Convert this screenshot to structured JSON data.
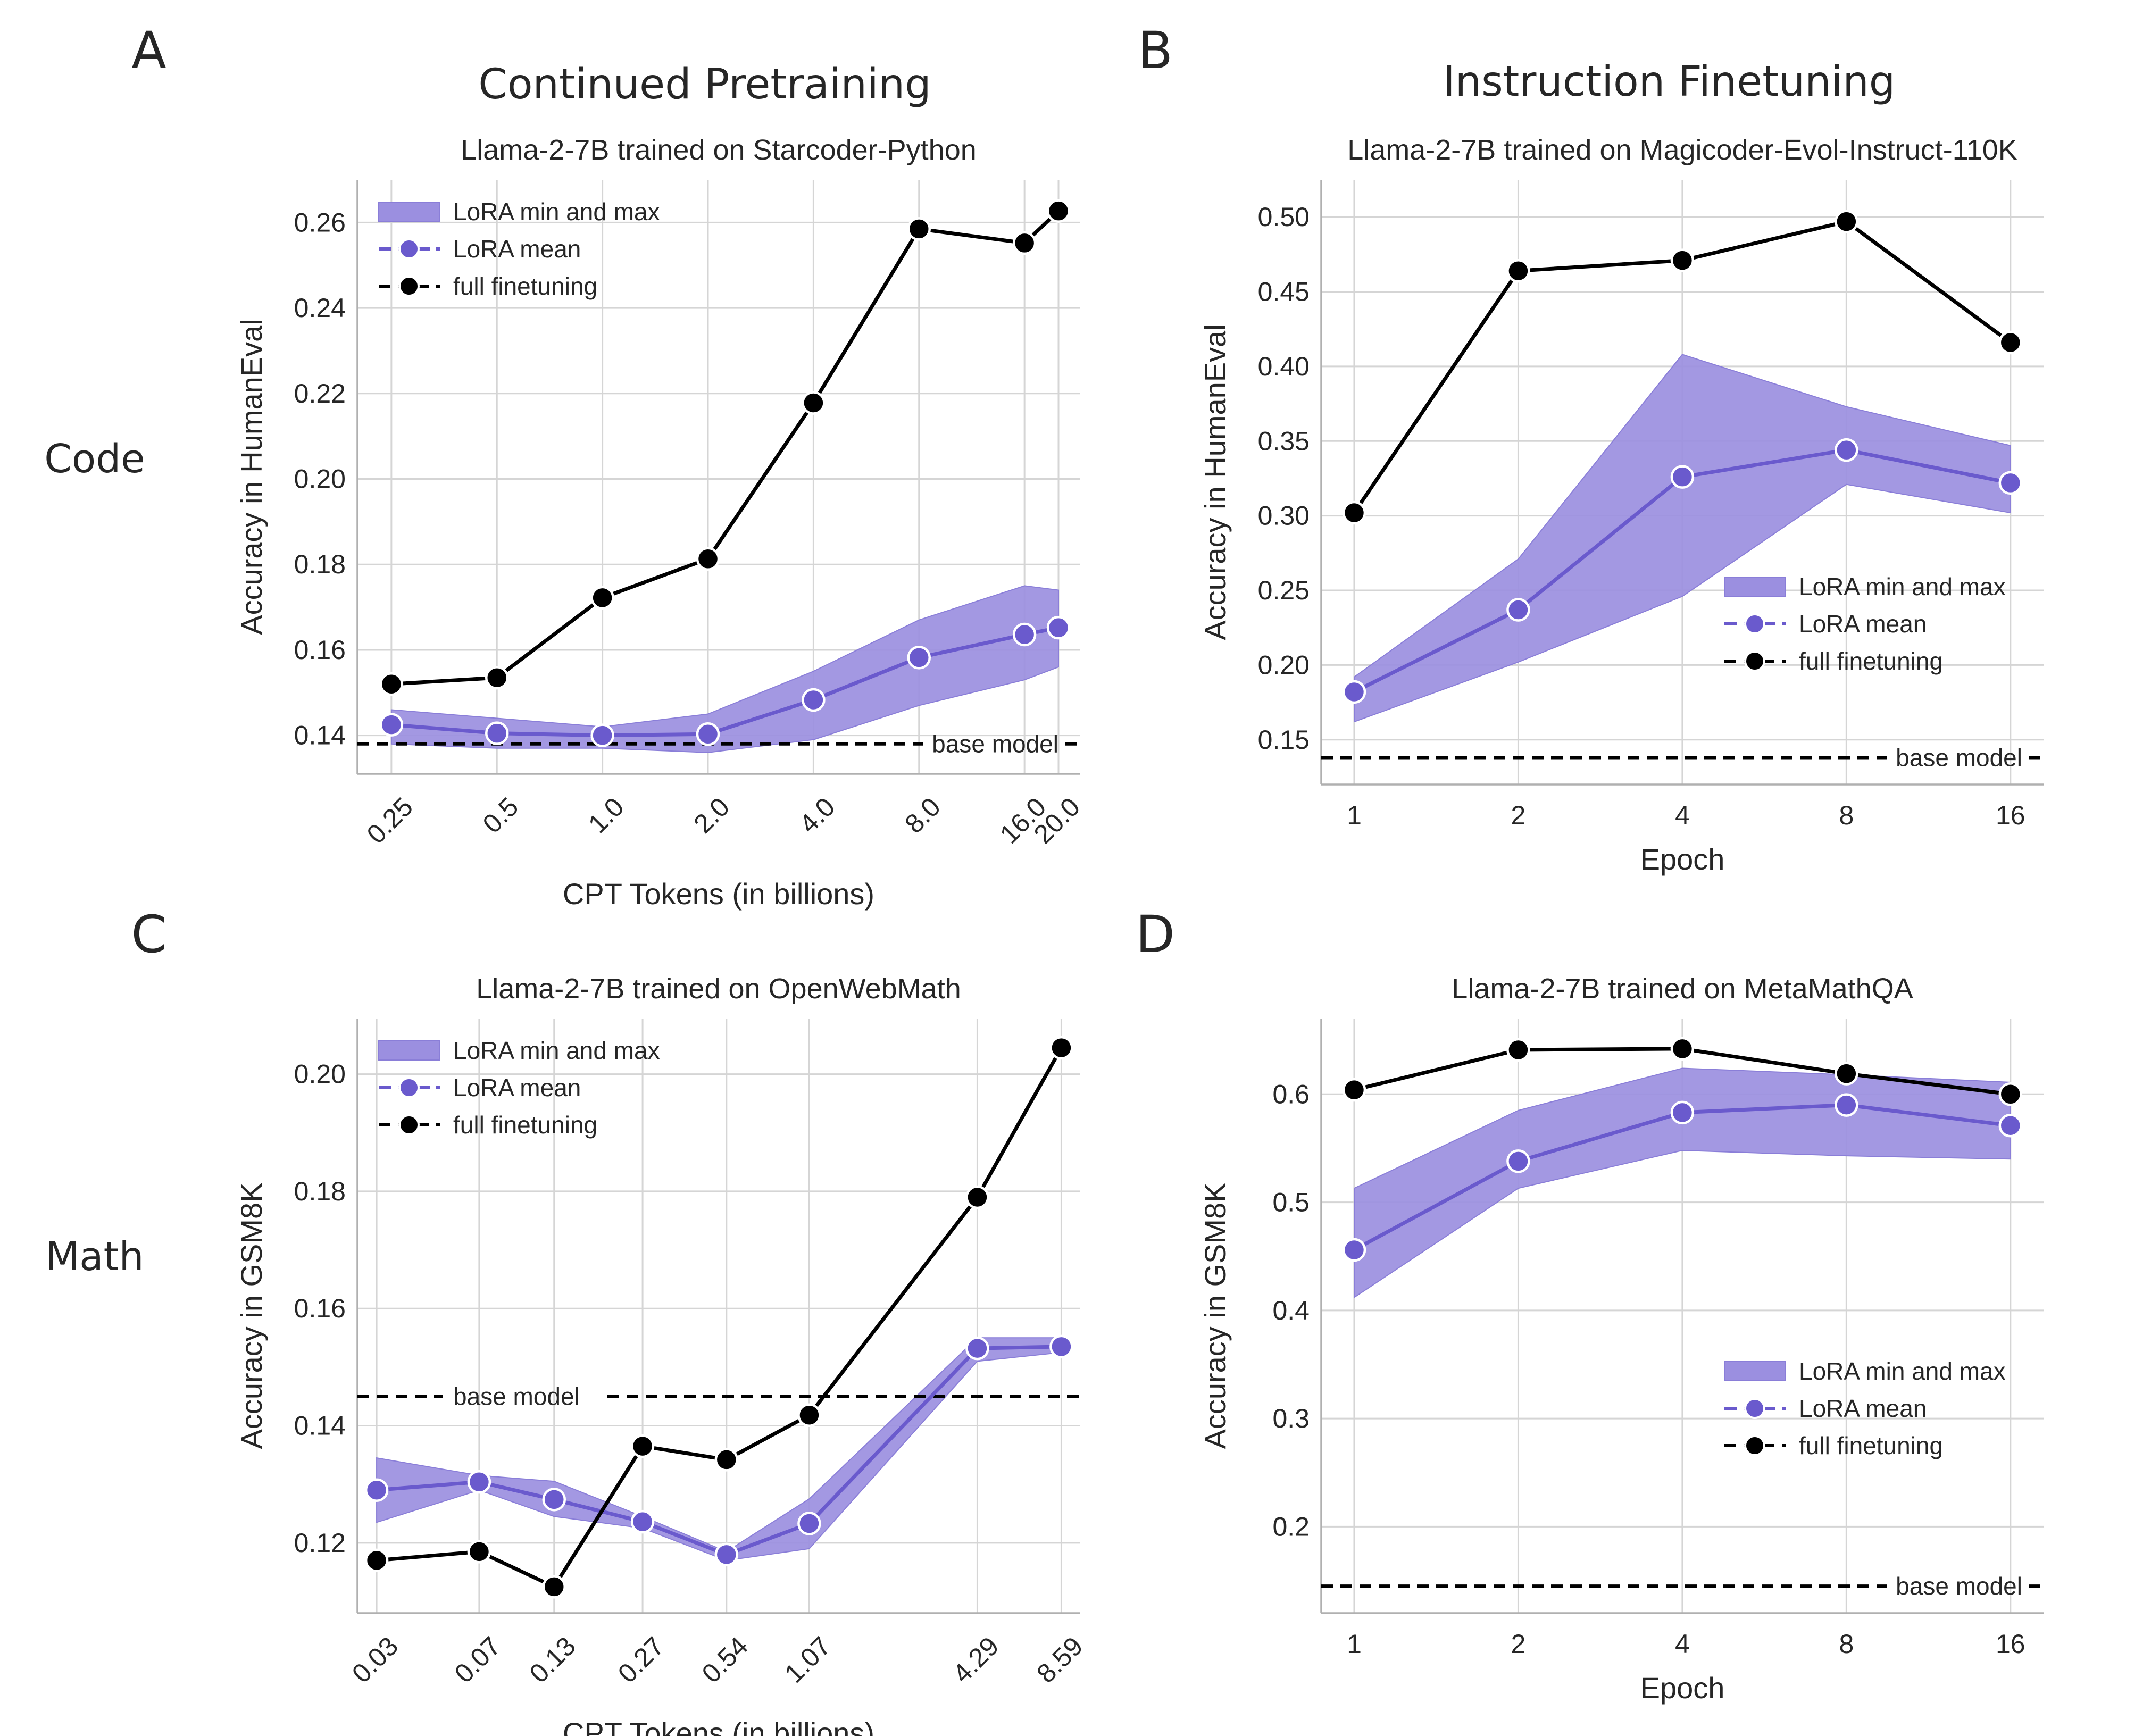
{
  "figure": {
    "column_titles": [
      "Continued Pretraining",
      "Instruction Finetuning"
    ],
    "row_labels": [
      "Code",
      "Math"
    ],
    "panel_letters": [
      "A",
      "B",
      "C",
      "D"
    ]
  },
  "colors": {
    "lora": "#6a5acd",
    "band": "#9b8fe0",
    "full": "#000000",
    "grid": "#d5d5d5",
    "axis": "#b0b0b0"
  },
  "chart_data": [
    {
      "id": "A",
      "type": "line",
      "title": "Llama-2-7B trained on Starcoder-Python",
      "xlabel": "CPT Tokens (in billions)",
      "ylabel": "Accuracy in HumanEval",
      "x_scale": "log2",
      "x": [
        0.25,
        0.5,
        1.0,
        2.0,
        4.0,
        8.0,
        16.0,
        20.0
      ],
      "xtick_labels": [
        "0.25",
        "0.5",
        "1.0",
        "2.0",
        "4.0",
        "8.0",
        "16.0",
        "20.0"
      ],
      "xtick_rotation": 45,
      "xlim": [
        0.2,
        23.0
      ],
      "ylim": [
        0.131,
        0.27
      ],
      "yticks": [
        0.14,
        0.16,
        0.18,
        0.2,
        0.22,
        0.24,
        0.26
      ],
      "ytick_labels": [
        "0.14",
        "0.16",
        "0.18",
        "0.20",
        "0.22",
        "0.24",
        "0.26"
      ],
      "series": [
        {
          "name": "LoRA min and max",
          "kind": "band",
          "lower": [
            0.138,
            0.137,
            0.137,
            0.136,
            0.139,
            0.147,
            0.153,
            0.156
          ],
          "upper": [
            0.146,
            0.144,
            0.142,
            0.145,
            0.155,
            0.167,
            0.175,
            0.174
          ]
        },
        {
          "name": "LoRA mean",
          "kind": "line",
          "values": [
            0.1425,
            0.1405,
            0.14,
            0.1403,
            0.1483,
            0.1582,
            0.1636,
            0.1652
          ]
        },
        {
          "name": "full finetuning",
          "kind": "line",
          "values": [
            0.152,
            0.1535,
            0.1722,
            0.1813,
            0.2178,
            0.2585,
            0.2552,
            0.2627
          ]
        }
      ],
      "baseline": {
        "label": "base model",
        "value": 0.138,
        "label_position": "right"
      },
      "legend": {
        "position": "top-left",
        "entries": [
          "LoRA min and max",
          "LoRA mean",
          "full finetuning"
        ]
      }
    },
    {
      "id": "B",
      "type": "line",
      "title": "Llama-2-7B trained on Magicoder-Evol-Instruct-110K",
      "xlabel": "Epoch",
      "ylabel": "Accuracy in HumanEval",
      "x_scale": "log2",
      "x": [
        1,
        2,
        4,
        8,
        16
      ],
      "xtick_labels": [
        "1",
        "2",
        "4",
        "8",
        "16"
      ],
      "xtick_rotation": 0,
      "xlim": [
        0.87,
        18.4
      ],
      "ylim": [
        0.12,
        0.525
      ],
      "yticks": [
        0.15,
        0.2,
        0.25,
        0.3,
        0.35,
        0.4,
        0.45,
        0.5
      ],
      "ytick_labels": [
        "0.15",
        "0.20",
        "0.25",
        "0.30",
        "0.35",
        "0.40",
        "0.45",
        "0.50"
      ],
      "series": [
        {
          "name": "LoRA min and max",
          "kind": "band",
          "lower": [
            0.162,
            0.202,
            0.246,
            0.321,
            0.302
          ],
          "upper": [
            0.192,
            0.271,
            0.408,
            0.373,
            0.347
          ]
        },
        {
          "name": "LoRA mean",
          "kind": "line",
          "values": [
            0.182,
            0.237,
            0.326,
            0.344,
            0.322
          ]
        },
        {
          "name": "full finetuning",
          "kind": "line",
          "values": [
            0.302,
            0.464,
            0.471,
            0.497,
            0.416
          ]
        }
      ],
      "baseline": {
        "label": "base model",
        "value": 0.138,
        "label_position": "right"
      },
      "legend": {
        "position": "right",
        "entries": [
          "LoRA min and max",
          "LoRA mean",
          "full finetuning"
        ]
      }
    },
    {
      "id": "C",
      "type": "line",
      "title": "Llama-2-7B trained on OpenWebMath",
      "xlabel": "CPT Tokens (in billions)",
      "ylabel": "Accuracy in GSM8K",
      "x_scale": "log2",
      "x": [
        0.03,
        0.07,
        0.13,
        0.27,
        0.54,
        1.07,
        4.29,
        8.59
      ],
      "xtick_labels": [
        "0.03",
        "0.07",
        "0.13",
        "0.27",
        "0.54",
        "1.07",
        "4.29",
        "8.59"
      ],
      "xtick_rotation": 45,
      "xlim": [
        0.0256,
        10.0
      ],
      "ylim": [
        0.108,
        0.2095
      ],
      "yticks": [
        0.12,
        0.14,
        0.16,
        0.18,
        0.2
      ],
      "ytick_labels": [
        "0.12",
        "0.14",
        "0.16",
        "0.18",
        "0.20"
      ],
      "series": [
        {
          "name": "LoRA min and max",
          "kind": "band",
          "lower": [
            0.1235,
            0.129,
            0.1245,
            0.1225,
            0.117,
            0.119,
            0.151,
            0.1525
          ],
          "upper": [
            0.1345,
            0.1315,
            0.1305,
            0.1245,
            0.1185,
            0.1275,
            0.155,
            0.155
          ]
        },
        {
          "name": "LoRA mean",
          "kind": "line",
          "values": [
            0.129,
            0.1304,
            0.1274,
            0.1236,
            0.118,
            0.1233,
            0.1532,
            0.1535
          ]
        },
        {
          "name": "full finetuning",
          "kind": "line",
          "values": [
            0.117,
            0.1185,
            0.1125,
            0.1365,
            0.1342,
            0.1418,
            0.179,
            0.2045
          ]
        }
      ],
      "baseline": {
        "label": "base model",
        "value": 0.145,
        "label_position": "left"
      },
      "legend": {
        "position": "top-left",
        "entries": [
          "LoRA min and max",
          "LoRA mean",
          "full finetuning"
        ]
      }
    },
    {
      "id": "D",
      "type": "line",
      "title": "Llama-2-7B trained on MetaMathQA",
      "xlabel": "Epoch",
      "ylabel": "Accuracy in GSM8K",
      "x_scale": "log2",
      "x": [
        1,
        2,
        4,
        8,
        16
      ],
      "xtick_labels": [
        "1",
        "2",
        "4",
        "8",
        "16"
      ],
      "xtick_rotation": 0,
      "xlim": [
        0.87,
        18.4
      ],
      "ylim": [
        0.12,
        0.67
      ],
      "yticks": [
        0.2,
        0.3,
        0.4,
        0.5,
        0.6
      ],
      "ytick_labels": [
        "0.2",
        "0.3",
        "0.4",
        "0.5",
        "0.6"
      ],
      "series": [
        {
          "name": "LoRA min and max",
          "kind": "band",
          "lower": [
            0.412,
            0.513,
            0.548,
            0.543,
            0.54
          ],
          "upper": [
            0.513,
            0.585,
            0.624,
            0.618,
            0.611
          ]
        },
        {
          "name": "LoRA mean",
          "kind": "line",
          "values": [
            0.456,
            0.538,
            0.583,
            0.59,
            0.571
          ]
        },
        {
          "name": "full finetuning",
          "kind": "line",
          "values": [
            0.604,
            0.641,
            0.642,
            0.619,
            0.6
          ]
        }
      ],
      "baseline": {
        "label": "base model",
        "value": 0.145,
        "label_position": "right"
      },
      "legend": {
        "position": "bottom-right",
        "entries": [
          "LoRA min and max",
          "LoRA mean",
          "full finetuning"
        ]
      }
    }
  ]
}
